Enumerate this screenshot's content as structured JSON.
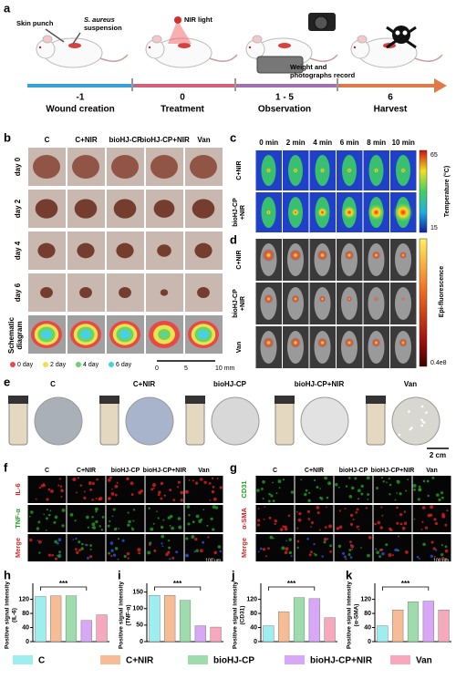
{
  "panel_a": {
    "label": "a",
    "skin_punch": "Skin punch",
    "suspension": [
      "S. aureus",
      "suspension"
    ],
    "nir_light": "NIR light",
    "record": [
      "Weight and",
      "photographs record"
    ],
    "steps": [
      {
        "day": "-1",
        "name": "Wound creation"
      },
      {
        "day": "0",
        "name": "Treatment"
      },
      {
        "day": "1 - 5",
        "name": "Observation"
      },
      {
        "day": "6",
        "name": "Harvest"
      }
    ]
  },
  "panel_b": {
    "label": "b",
    "columns": [
      "C",
      "C+NIR",
      "bioHJ-CP",
      "bioHJ-CP+NIR",
      "Van"
    ],
    "rows": [
      "day 0",
      "day 2",
      "day 4",
      "day 6"
    ],
    "schematic": [
      "Schematic",
      "diagram"
    ],
    "legend": [
      {
        "name": "0 day",
        "color": "#e84848"
      },
      {
        "name": "2 day",
        "color": "#eee24a"
      },
      {
        "name": "4 day",
        "color": "#6ad46a"
      },
      {
        "name": "6 day",
        "color": "#46d2e2"
      }
    ],
    "scale": [
      "0",
      "5",
      "10 mm"
    ]
  },
  "panel_c": {
    "label": "c",
    "times": [
      "0 min",
      "2 min",
      "4 min",
      "6 min",
      "8 min",
      "10 min"
    ],
    "rows": [
      [
        "C+NIR"
      ],
      [
        "bioHJ-CP",
        "+NIR"
      ]
    ],
    "colorbar_max": "65",
    "colorbar_min": "15",
    "colorbar_title": "Temperature (°C)"
  },
  "panel_d": {
    "label": "d",
    "rows": [
      [
        "C+NIR"
      ],
      [
        "bioHJ-CP",
        "+NIR"
      ],
      [
        "Van"
      ]
    ],
    "colorbar_title": "Epi-fluorescence",
    "colorbar_min": "0.4e8"
  },
  "panel_e": {
    "label": "e",
    "columns": [
      "C",
      "C+NIR",
      "bioHJ-CP",
      "bioHJ-CP+NIR",
      "Van"
    ],
    "scale": "2 cm"
  },
  "panel_f": {
    "label": "f",
    "columns": [
      "C",
      "C+NIR",
      "bioHJ-CP",
      "bioHJ-CP+NIR",
      "Van"
    ],
    "rows": [
      {
        "name": "IL-6",
        "color": "#e02020"
      },
      {
        "name": "TNF-α",
        "color": "#20a020"
      },
      {
        "name": "Merge",
        "color": "#d03030"
      }
    ],
    "scale": "100 μm"
  },
  "panel_g": {
    "label": "g",
    "columns": [
      "C",
      "C+NIR",
      "bioHJ-CP",
      "bioHJ-CP+NIR",
      "Van"
    ],
    "rows": [
      {
        "name": "CD31",
        "color": "#20a020"
      },
      {
        "name": "α-SMA",
        "color": "#e02020"
      },
      {
        "name": "Merge",
        "color": "#d03030"
      }
    ],
    "scale": "100 μm"
  },
  "chart_data": [
    {
      "type": "bar",
      "label": "h",
      "ylabel": [
        "Positive signal intensity",
        "(IL-6)"
      ],
      "values": [
        128,
        130,
        130,
        60,
        76
      ],
      "ylim": [
        0,
        150
      ],
      "yticks": [
        0,
        40,
        80,
        120
      ],
      "annotation": "***"
    },
    {
      "type": "bar",
      "label": "i",
      "ylabel": [
        "Positive signal intensity",
        "(TNF-α)"
      ],
      "values": [
        140,
        140,
        125,
        48,
        44
      ],
      "ylim": [
        0,
        160
      ],
      "yticks": [
        0,
        50,
        100,
        150
      ],
      "annotation": "***"
    },
    {
      "type": "bar",
      "label": "j",
      "ylabel": [
        "Positive signal intensity",
        "(CD31)"
      ],
      "values": [
        45,
        85,
        125,
        122,
        68
      ],
      "ylim": [
        0,
        150
      ],
      "yticks": [
        0,
        40,
        80,
        120
      ],
      "annotation": "***"
    },
    {
      "type": "bar",
      "label": "k",
      "ylabel": [
        "Positive signal intensity",
        "(α-SMA)"
      ],
      "values": [
        45,
        90,
        113,
        115,
        90
      ],
      "ylim": [
        0,
        150
      ],
      "yticks": [
        0,
        40,
        80,
        120
      ],
      "annotation": "***"
    }
  ],
  "legend": {
    "names": [
      "C",
      "C+NIR",
      "bioHJ-CP",
      "bioHJ-CP+NIR",
      "Van"
    ],
    "colors": [
      "#9eeef0",
      "#f6bc96",
      "#9edcae",
      "#d8a8f6",
      "#f6a8bc"
    ]
  }
}
